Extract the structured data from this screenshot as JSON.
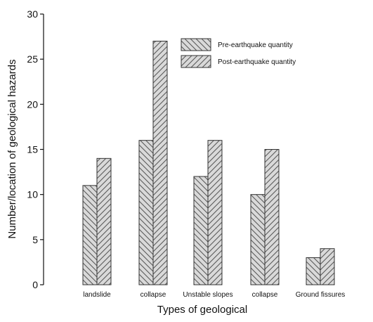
{
  "chart_data": {
    "type": "bar",
    "title": "",
    "xlabel": "Types of geological",
    "ylabel": "Number/location of geological hazards",
    "categories": [
      "landslide",
      "collapse",
      "Unstable slopes",
      "collapse",
      "Ground fissures"
    ],
    "series": [
      {
        "name": "Pre-earthquake quantity",
        "values": [
          11,
          16,
          12,
          10,
          3
        ],
        "hatch": "left-diagonal"
      },
      {
        "name": "Post-earthquake quantity",
        "values": [
          14,
          27,
          16,
          15,
          4
        ],
        "hatch": "right-diagonal"
      }
    ],
    "ylim": [
      0,
      30
    ],
    "yticks": [
      0,
      5,
      10,
      15,
      20,
      25,
      30
    ],
    "grid": false,
    "legend_position": "top-right",
    "colors": {
      "bar_fill": "#d9d9d9",
      "hatch": "#555555",
      "outline": "#333333",
      "axis": "#111111"
    }
  }
}
